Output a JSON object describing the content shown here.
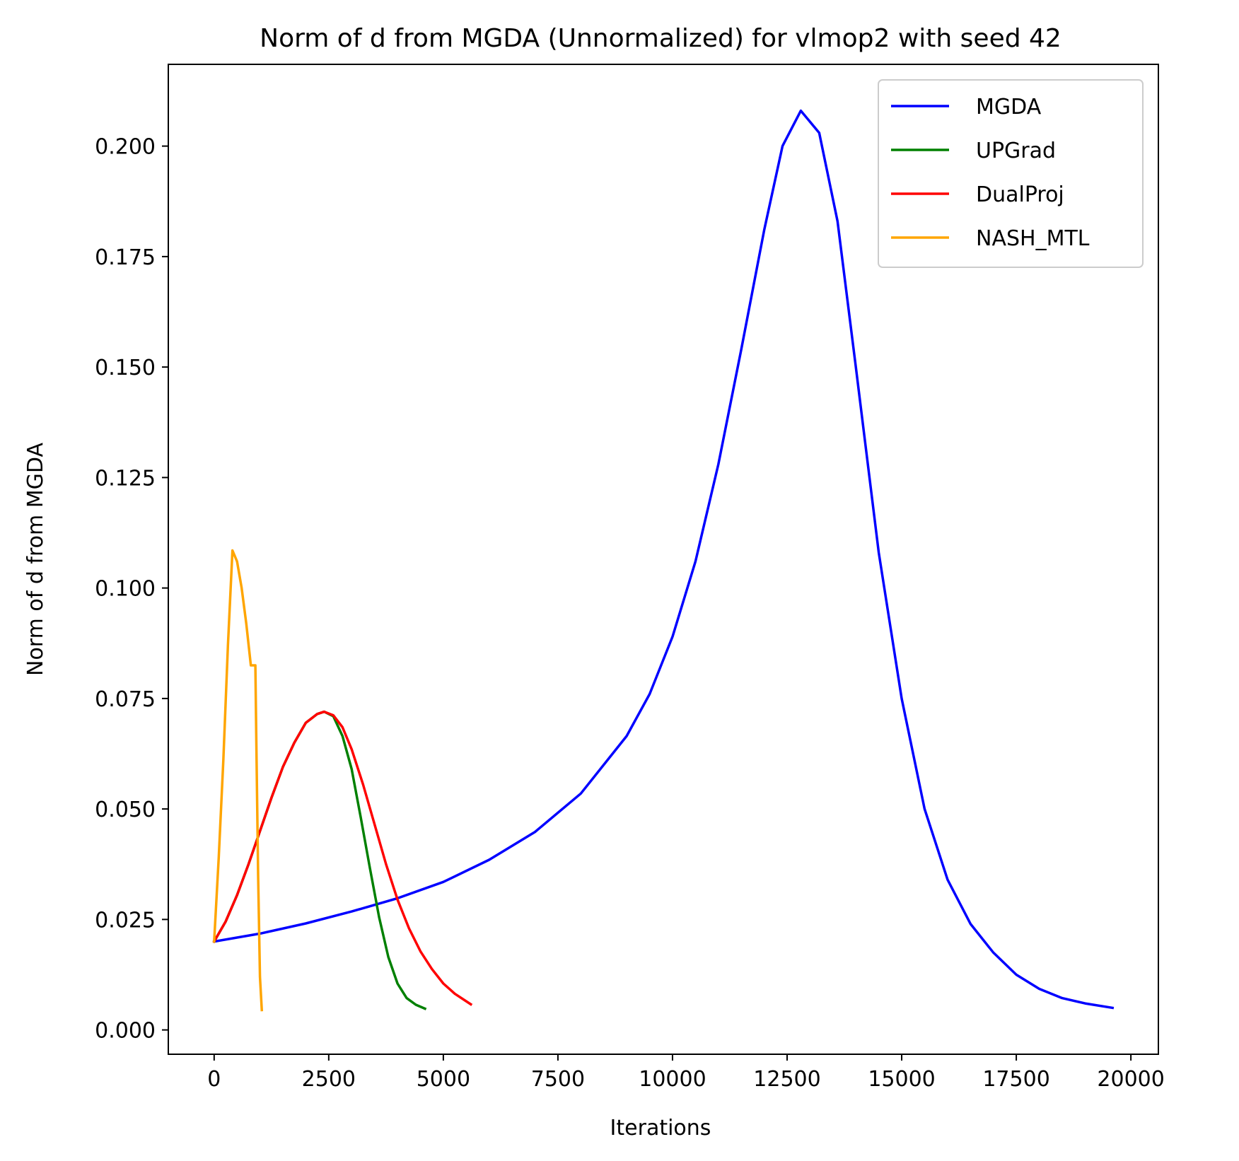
{
  "chart_data": {
    "type": "line",
    "title": "Norm of d from MGDA (Unnormalized) for vlmop2 with seed 42",
    "xlabel": "Iterations",
    "ylabel": "Norm of d from MGDA",
    "xlim": [
      -1000,
      20600
    ],
    "ylim": [
      -0.0055,
      0.2185
    ],
    "x_ticks": [
      0,
      2500,
      5000,
      7500,
      10000,
      12500,
      15000,
      17500,
      20000
    ],
    "x_tick_labels": [
      "0",
      "2500",
      "5000",
      "7500",
      "10000",
      "12500",
      "15000",
      "17500",
      "20000"
    ],
    "y_ticks": [
      0.0,
      0.025,
      0.05,
      0.075,
      0.1,
      0.125,
      0.15,
      0.175,
      0.2
    ],
    "y_tick_labels": [
      "0.000",
      "0.025",
      "0.050",
      "0.075",
      "0.100",
      "0.125",
      "0.150",
      "0.175",
      "0.200"
    ],
    "grid": false,
    "legend_position": "top-right",
    "series": [
      {
        "name": "MGDA",
        "color": "#0000ff",
        "x": [
          0,
          1000,
          2000,
          3000,
          4000,
          5000,
          6000,
          7000,
          8000,
          9000,
          9500,
          10000,
          10500,
          11000,
          11500,
          12000,
          12400,
          12800,
          13200,
          13600,
          14000,
          14500,
          15000,
          15500,
          16000,
          16500,
          17000,
          17500,
          18000,
          18500,
          19000,
          19600
        ],
        "y": [
          0.02,
          0.0218,
          0.0241,
          0.0268,
          0.0298,
          0.0335,
          0.0385,
          0.0448,
          0.0535,
          0.0665,
          0.076,
          0.089,
          0.106,
          0.128,
          0.154,
          0.181,
          0.2,
          0.208,
          0.203,
          0.183,
          0.15,
          0.108,
          0.075,
          0.05,
          0.034,
          0.024,
          0.0175,
          0.0125,
          0.0093,
          0.0072,
          0.006,
          0.005
        ]
      },
      {
        "name": "UPGrad",
        "color": "#008000",
        "x": [
          0,
          250,
          500,
          750,
          1000,
          1250,
          1500,
          1750,
          2000,
          2250,
          2400,
          2600,
          2800,
          3000,
          3200,
          3400,
          3600,
          3800,
          4000,
          4200,
          4400,
          4600
        ],
        "y": [
          0.02,
          0.0245,
          0.0305,
          0.0375,
          0.045,
          0.0525,
          0.0595,
          0.065,
          0.0695,
          0.0715,
          0.072,
          0.071,
          0.0665,
          0.059,
          0.048,
          0.0365,
          0.0255,
          0.0165,
          0.0105,
          0.0072,
          0.0057,
          0.0048
        ]
      },
      {
        "name": "DualProj",
        "color": "#ff0000",
        "x": [
          0,
          250,
          500,
          750,
          1000,
          1250,
          1500,
          1750,
          2000,
          2250,
          2400,
          2600,
          2800,
          3000,
          3250,
          3500,
          3750,
          4000,
          4250,
          4500,
          4750,
          5000,
          5250,
          5600
        ],
        "y": [
          0.02,
          0.0245,
          0.0305,
          0.0375,
          0.045,
          0.0525,
          0.0595,
          0.065,
          0.0695,
          0.0715,
          0.072,
          0.0712,
          0.0685,
          0.0635,
          0.0555,
          0.0465,
          0.0375,
          0.0295,
          0.023,
          0.0178,
          0.0138,
          0.0105,
          0.0082,
          0.0058
        ]
      },
      {
        "name": "NASH_MTL",
        "color": "#ffa500",
        "x": [
          0,
          100,
          200,
          300,
          400,
          500,
          600,
          700,
          800,
          900,
          920,
          960,
          1000,
          1040
        ],
        "y": [
          0.02,
          0.039,
          0.061,
          0.087,
          0.1085,
          0.106,
          0.1,
          0.092,
          0.0825,
          0.0825,
          0.066,
          0.035,
          0.012,
          0.0045
        ]
      }
    ]
  }
}
